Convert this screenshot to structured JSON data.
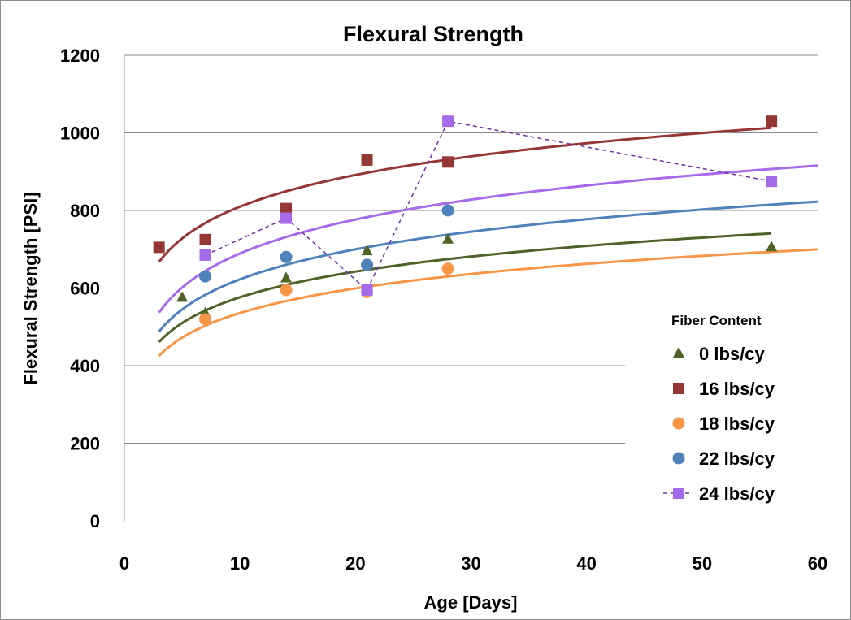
{
  "chart_data": {
    "type": "scatter",
    "title": "Flexural Strength",
    "xlabel": "Age [Days]",
    "ylabel": "Flexural Strength [PSI]",
    "xlim": [
      0,
      60
    ],
    "ylim": [
      0,
      1200
    ],
    "x_ticks": [
      0,
      10,
      20,
      30,
      40,
      50,
      60
    ],
    "y_ticks": [
      0,
      200,
      400,
      600,
      800,
      1000,
      1200
    ],
    "grid": "horizontal",
    "legend": {
      "title": "Fiber Content",
      "placement": "bottom-right"
    },
    "series": [
      {
        "name": "0 lbs/cy",
        "marker": "triangle",
        "color": "#4f6228",
        "x": [
          5,
          7,
          14,
          21,
          28,
          56
        ],
        "y": [
          575,
          535,
          625,
          695,
          725,
          705
        ],
        "trendline": {
          "kind": "log",
          "x_range": [
            3,
            56
          ],
          "a": 356,
          "b": 95.6,
          "color": "#4f6228"
        }
      },
      {
        "name": "16 lbs/cy",
        "marker": "square",
        "color": "#953735",
        "x": [
          3,
          7,
          14,
          21,
          28,
          56
        ],
        "y": [
          705,
          725,
          805,
          930,
          925,
          1030
        ],
        "trendline": {
          "kind": "log",
          "x_range": [
            3,
            56
          ],
          "a": 538,
          "b": 118,
          "color": "#953735"
        }
      },
      {
        "name": "18 lbs/cy",
        "marker": "circle",
        "color": "#f79646",
        "x": [
          7,
          14,
          21,
          28
        ],
        "y": [
          520,
          595,
          590,
          650
        ],
        "trendline": {
          "kind": "log",
          "x_range": [
            3,
            60
          ],
          "a": 325,
          "b": 91.5,
          "color": "#f79646"
        }
      },
      {
        "name": "22 lbs/cy",
        "marker": "circle",
        "color": "#4f81bd",
        "x": [
          7,
          14,
          21,
          28
        ],
        "y": [
          630,
          680,
          660,
          800
        ],
        "trendline": {
          "kind": "log",
          "x_range": [
            3,
            60
          ],
          "a": 365,
          "b": 111.8,
          "color": "#4f81bd"
        }
      },
      {
        "name": "24 lbs/cy",
        "marker": "square",
        "color": "#a66bea",
        "connect_dashed": true,
        "x": [
          7,
          14,
          21,
          28,
          56
        ],
        "y": [
          685,
          780,
          595,
          1030,
          875
        ],
        "trendline": {
          "kind": "log",
          "x_range": [
            3,
            60
          ],
          "a": 398,
          "b": 126.4,
          "color": "#a66bea"
        }
      }
    ]
  }
}
